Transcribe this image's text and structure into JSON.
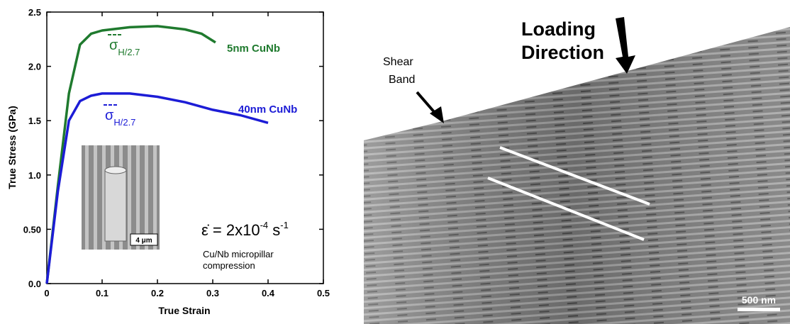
{
  "chart_data": {
    "type": "line",
    "x_label": "True Strain",
    "y_label": "True Stress (GPa)",
    "xlim": [
      0,
      0.5
    ],
    "ylim": [
      0,
      2.5
    ],
    "xticks": [
      0,
      0.1,
      0.2,
      0.3,
      0.4,
      0.5
    ],
    "yticks": [
      {
        "value": 0,
        "label": "0.0"
      },
      {
        "value": 0.5,
        "label": "0.50"
      },
      {
        "value": 1,
        "label": "1.0"
      },
      {
        "value": 1.5,
        "label": "1.5"
      },
      {
        "value": 2,
        "label": "2.0"
      },
      {
        "value": 2.5,
        "label": "2.5"
      }
    ],
    "series": [
      {
        "name": "5nm CuNb",
        "color": "#1f7a2e",
        "x": [
          0,
          0.02,
          0.04,
          0.06,
          0.08,
          0.1,
          0.15,
          0.2,
          0.25,
          0.28,
          0.305
        ],
        "values": [
          0,
          0.9,
          1.75,
          2.2,
          2.3,
          2.33,
          2.36,
          2.37,
          2.34,
          2.3,
          2.22
        ]
      },
      {
        "name": "40nm CuNb",
        "color": "#1c1cd6",
        "x": [
          0,
          0.02,
          0.04,
          0.06,
          0.08,
          0.1,
          0.15,
          0.2,
          0.25,
          0.3,
          0.35,
          0.4
        ],
        "values": [
          0,
          0.85,
          1.5,
          1.68,
          1.73,
          1.75,
          1.75,
          1.72,
          1.67,
          1.6,
          1.55,
          1.48
        ]
      }
    ],
    "annotations": {
      "sigma_green": {
        "symbol": "σ",
        "subscript": "H/2.7"
      },
      "sigma_blue": {
        "symbol": "σ",
        "subscript": "H/2.7"
      },
      "strain_rate": {
        "text": "ε̇ = 2x10",
        "exp": "-4",
        "unit": " s",
        "unit_exp": "-1"
      },
      "note": [
        "Cu/Nb micropillar",
        "compression"
      ],
      "inset_scale": "4 μm"
    }
  },
  "micrograph": {
    "title": [
      "Loading",
      "Direction"
    ],
    "label": [
      "Shear",
      "Band"
    ],
    "scale_bar": "500 nm"
  }
}
